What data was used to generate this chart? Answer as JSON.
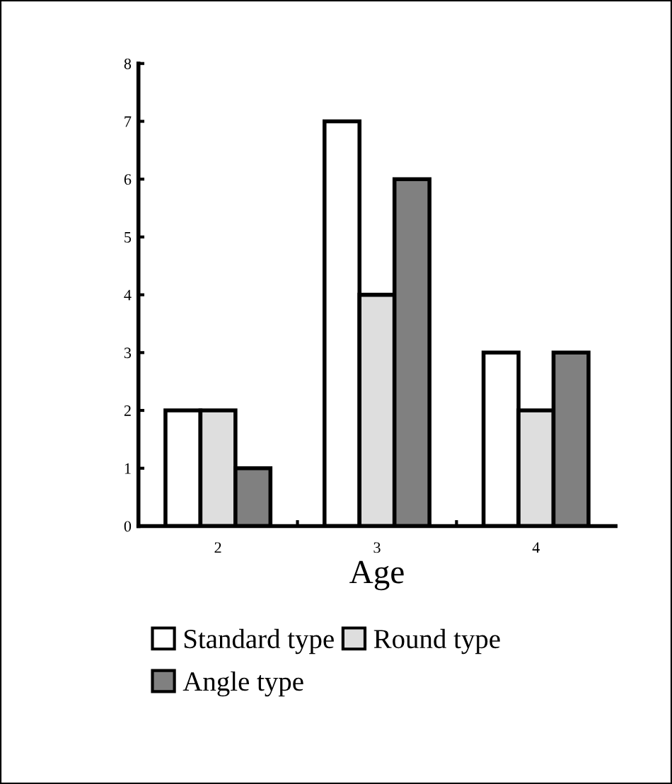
{
  "chart_data": {
    "type": "bar",
    "xlabel": "Age",
    "categories": [
      "2",
      "3",
      "4"
    ],
    "series": [
      {
        "name": "Standard type",
        "color": "#ffffff",
        "values": [
          2,
          7,
          3
        ]
      },
      {
        "name": "Round type",
        "color": "#dedede",
        "values": [
          2,
          4,
          2
        ]
      },
      {
        "name": "Angle type",
        "color": "#808080",
        "values": [
          1,
          6,
          3
        ]
      }
    ],
    "ylim": [
      0,
      8
    ],
    "yticks": [
      0,
      1,
      2,
      3,
      4,
      5,
      6,
      7,
      8
    ],
    "grid": false,
    "legend": "bottom"
  }
}
